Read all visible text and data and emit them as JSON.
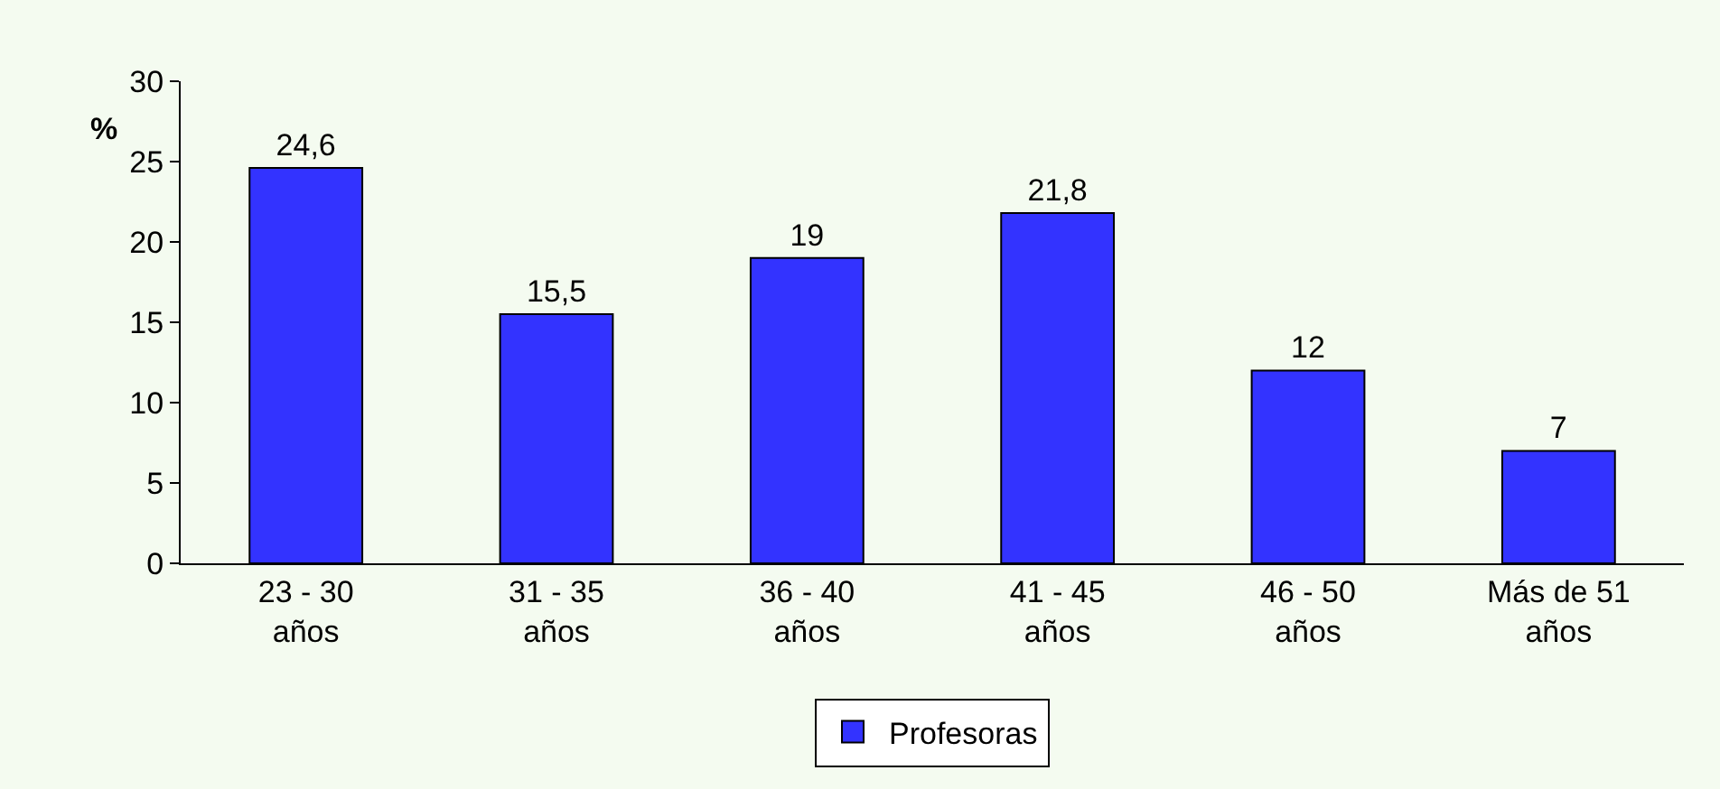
{
  "chart_data": {
    "type": "bar",
    "ylabel": "%",
    "categories": [
      "23 - 30 años",
      "31 - 35 años",
      "36 - 40 años",
      "41 - 45 años",
      "46 - 50 años",
      "Más de 51 años"
    ],
    "series": [
      {
        "name": "Profesoras",
        "color": "#3333ff",
        "values": [
          24.6,
          15.5,
          19,
          21.8,
          12,
          7
        ],
        "value_labels": [
          "24,6",
          "15,5",
          "19",
          "21,8",
          "12",
          "7"
        ]
      }
    ],
    "ylim": [
      0,
      30
    ],
    "yticks": [
      0,
      5,
      10,
      15,
      20,
      25,
      30
    ],
    "grid": false,
    "legend": "bottom"
  }
}
